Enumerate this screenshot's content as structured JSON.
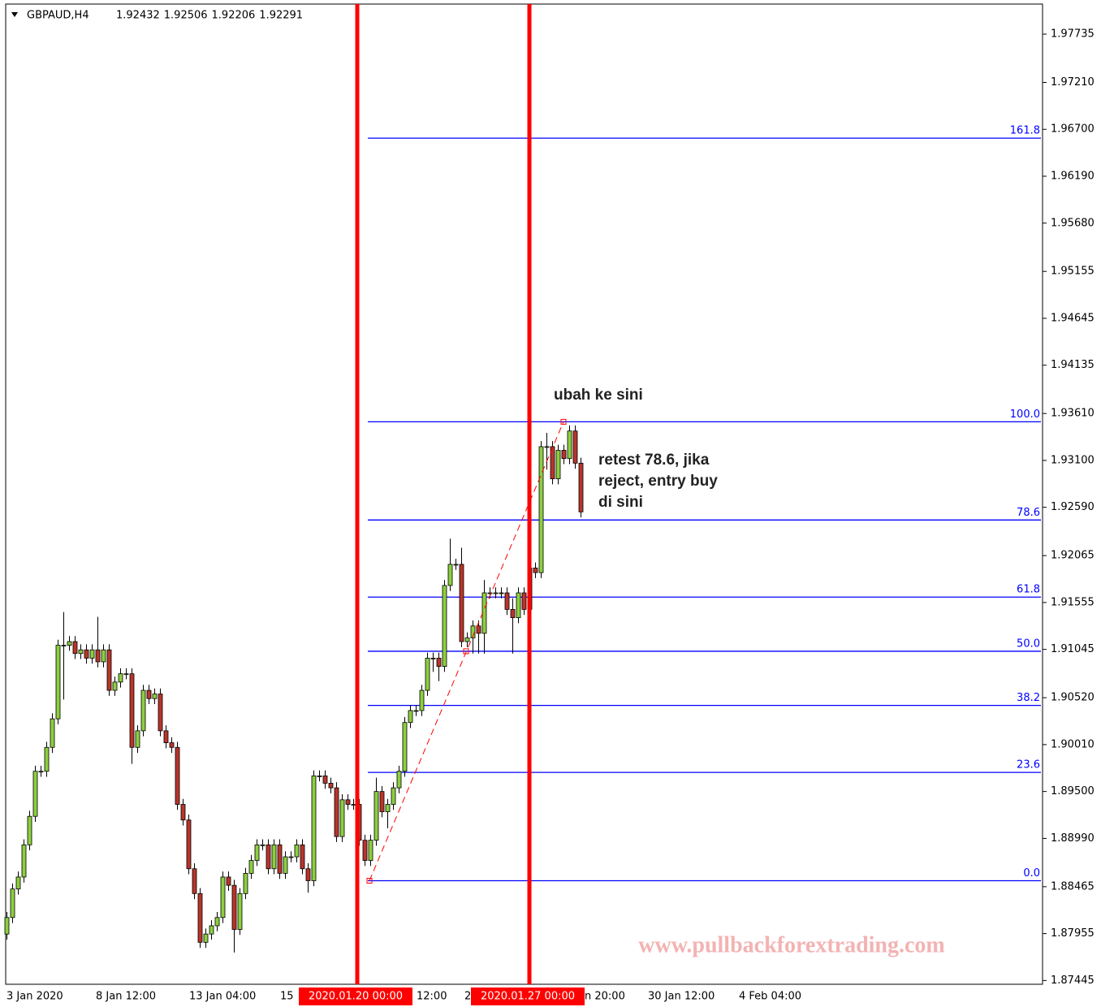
{
  "chart_data": {
    "type": "candlestick",
    "title": "GBPAUD,H4",
    "quote": [
      1.92432,
      1.92506,
      1.92206,
      1.92291
    ],
    "open": [
      1.8795,
      1.8813,
      1.8844,
      1.8857,
      1.8892,
      1.8923,
      1.8972,
      1.8972,
      1.8998,
      1.9029,
      1.9109,
      1.9109,
      1.9113,
      1.91,
      1.9104,
      1.9095,
      1.9104,
      1.9091,
      1.9104,
      1.906,
      1.9069,
      1.9078,
      1.9078,
      1.8998,
      1.9016,
      1.906,
      1.9051,
      1.9056,
      1.9016,
      1.9003,
      1.8998,
      1.8936,
      1.8919,
      1.8866,
      1.8839,
      1.8786,
      1.8795,
      1.8804,
      1.8813,
      1.8857,
      1.8848,
      1.88,
      1.8839,
      1.8861,
      1.8875,
      1.8892,
      1.8892,
      1.8866,
      1.8892,
      1.8861,
      1.8879,
      1.8879,
      1.8892,
      1.8866,
      1.8853,
      1.8967,
      1.8967,
      1.8959,
      1.8954,
      1.8901,
      1.8941,
      1.8936,
      1.8936,
      1.8897,
      1.8875,
      1.8897,
      1.895,
      1.8928,
      1.8936,
      1.8954,
      1.8972,
      1.9025,
      1.9038,
      1.9038,
      1.906,
      1.9095,
      1.9095,
      1.9086,
      1.9174,
      1.9197,
      1.9197,
      1.9113,
      1.9117,
      1.913,
      1.9122,
      1.9166,
      1.9166,
      1.9166,
      1.9166,
      1.9148,
      1.9139,
      1.9166,
      1.9148,
      1.9193,
      1.9188,
      1.9325,
      1.9325,
      1.929,
      1.9321,
      1.9312,
      1.9342,
      1.9307
    ],
    "high": [
      1.8819,
      1.885,
      1.8863,
      1.8898,
      1.8929,
      1.8978,
      1.8978,
      1.9004,
      1.9035,
      1.9115,
      1.9145,
      1.9119,
      1.9119,
      1.911,
      1.911,
      1.911,
      1.914,
      1.911,
      1.911,
      1.9075,
      1.9084,
      1.9084,
      1.9084,
      1.9022,
      1.9066,
      1.9066,
      1.9062,
      1.9062,
      1.9022,
      1.9009,
      1.9004,
      1.8942,
      1.8925,
      1.8872,
      1.8845,
      1.8801,
      1.881,
      1.8819,
      1.8863,
      1.8863,
      1.8854,
      1.8845,
      1.8867,
      1.8881,
      1.8898,
      1.8898,
      1.8898,
      1.8898,
      1.8898,
      1.8885,
      1.8885,
      1.8898,
      1.8898,
      1.8872,
      1.8973,
      1.8973,
      1.8973,
      1.8965,
      1.896,
      1.8947,
      1.8947,
      1.8942,
      1.8942,
      1.8903,
      1.8903,
      1.8965,
      1.8956,
      1.8942,
      1.896,
      1.8978,
      1.9031,
      1.9044,
      1.9044,
      1.9066,
      1.9101,
      1.9101,
      1.9101,
      1.918,
      1.9225,
      1.9203,
      1.9215,
      1.9123,
      1.9136,
      1.9136,
      1.918,
      1.9172,
      1.9172,
      1.9172,
      1.9172,
      1.916,
      1.9172,
      1.9172,
      1.9199,
      1.9199,
      1.9331,
      1.934,
      1.9331,
      1.9327,
      1.9327,
      1.9348,
      1.9348,
      1.9313
    ],
    "low": [
      1.8789,
      1.8807,
      1.8838,
      1.8851,
      1.8886,
      1.8917,
      1.8966,
      1.8966,
      1.8992,
      1.9023,
      1.905,
      1.9103,
      1.9094,
      1.9094,
      1.9089,
      1.9089,
      1.9085,
      1.9085,
      1.9054,
      1.9054,
      1.9063,
      1.9072,
      1.898,
      1.8992,
      1.901,
      1.9045,
      1.9045,
      1.901,
      1.8997,
      1.8992,
      1.893,
      1.8913,
      1.886,
      1.8833,
      1.878,
      1.878,
      1.8789,
      1.8798,
      1.8807,
      1.8842,
      1.8775,
      1.8794,
      1.8833,
      1.8855,
      1.8869,
      1.8886,
      1.886,
      1.886,
      1.8855,
      1.8855,
      1.8873,
      1.8873,
      1.886,
      1.884,
      1.8847,
      1.8961,
      1.8953,
      1.8948,
      1.8895,
      1.8895,
      1.893,
      1.893,
      1.8891,
      1.8869,
      1.8869,
      1.8891,
      1.8922,
      1.891,
      1.893,
      1.8948,
      1.8966,
      1.9019,
      1.9032,
      1.9032,
      1.9054,
      1.908,
      1.907,
      1.908,
      1.9168,
      1.9191,
      1.9107,
      1.9107,
      1.91,
      1.91,
      1.91,
      1.916,
      1.916,
      1.916,
      1.9142,
      1.91,
      1.9133,
      1.9142,
      1.9142,
      1.9182,
      1.9182,
      1.93,
      1.9284,
      1.9284,
      1.9306,
      1.9306,
      1.9301,
      1.9248
    ],
    "close": [
      1.8813,
      1.8844,
      1.8857,
      1.8892,
      1.8923,
      1.8972,
      1.8972,
      1.8998,
      1.9029,
      1.9109,
      1.9109,
      1.9113,
      1.91,
      1.9104,
      1.9095,
      1.9104,
      1.9091,
      1.9104,
      1.906,
      1.9069,
      1.9078,
      1.9078,
      1.8998,
      1.9016,
      1.906,
      1.9051,
      1.9056,
      1.9016,
      1.9003,
      1.8998,
      1.8936,
      1.8919,
      1.8866,
      1.8839,
      1.8786,
      1.8795,
      1.8804,
      1.8813,
      1.8857,
      1.8848,
      1.88,
      1.8839,
      1.8861,
      1.8875,
      1.8892,
      1.8892,
      1.8866,
      1.8892,
      1.8861,
      1.8879,
      1.8879,
      1.8892,
      1.8866,
      1.8853,
      1.8967,
      1.8967,
      1.8959,
      1.8954,
      1.8901,
      1.8941,
      1.8936,
      1.8936,
      1.8897,
      1.8875,
      1.8897,
      1.895,
      1.8928,
      1.8936,
      1.8954,
      1.8972,
      1.9025,
      1.9038,
      1.9038,
      1.906,
      1.9095,
      1.9095,
      1.9086,
      1.9174,
      1.9197,
      1.9197,
      1.9113,
      1.9117,
      1.913,
      1.9122,
      1.9166,
      1.9166,
      1.9166,
      1.9166,
      1.9148,
      1.9139,
      1.9166,
      1.9148,
      1.9193,
      1.9188,
      1.9325,
      1.9325,
      1.929,
      1.9321,
      1.9312,
      1.9342,
      1.9307,
      1.9254
    ],
    "up_color": "#8dcf3f",
    "down_color": "#b8352a",
    "ylim": [
      1.87404,
      1.98062
    ],
    "yticks": [
      1.97735,
      {
        "value": 1.9721,
        "label": "1.97210"
      },
      {
        "value": 1.967,
        "label": "1.96700"
      },
      {
        "value": 1.9619,
        "label": "1.96190"
      },
      {
        "value": 1.9568,
        "label": "1.95680"
      },
      1.95155,
      1.94645,
      1.94135,
      {
        "value": 1.9361,
        "label": "1.93610"
      },
      {
        "value": 1.931,
        "label": "1.93100"
      },
      {
        "value": 1.9259,
        "label": "1.92590"
      },
      1.92065,
      1.91555,
      1.91045,
      {
        "value": 1.9052,
        "label": "1.90520"
      },
      {
        "value": 1.9001,
        "label": "1.90010"
      },
      {
        "value": 1.895,
        "label": "1.89500"
      },
      {
        "value": 1.8899,
        "label": "1.88990"
      },
      1.88465,
      1.87955,
      1.87445
    ],
    "xlabels": [
      "3 Jan 2020",
      "8 Jan 12:00",
      "13 Jan 04:00",
      "15",
      "12:00",
      "2",
      "n 20:00",
      "30 Jan 12:00",
      "4 Feb 04:00"
    ],
    "vlines": [
      {
        "label": "2020.01.20 00:00"
      },
      {
        "label": "2020.01.27 00:00"
      }
    ],
    "vline_color": "#ff0000",
    "fib": {
      "low": 1.8853,
      "high": 1.9352,
      "color": "#0000ff",
      "levels": [
        0,
        23.6,
        38.2,
        50,
        61.8,
        78.6,
        100,
        161.8
      ],
      "value_labels": [
        "0.0",
        "23.6",
        "38.2",
        "50.0",
        "61.8",
        "78.6",
        "100.0",
        "161.8"
      ]
    },
    "annotations": [
      "ubah ke sini",
      "retest 78.6, jika",
      "reject, entry buy",
      "di sini"
    ],
    "watermark": "www.pullbackforextrading.com"
  }
}
